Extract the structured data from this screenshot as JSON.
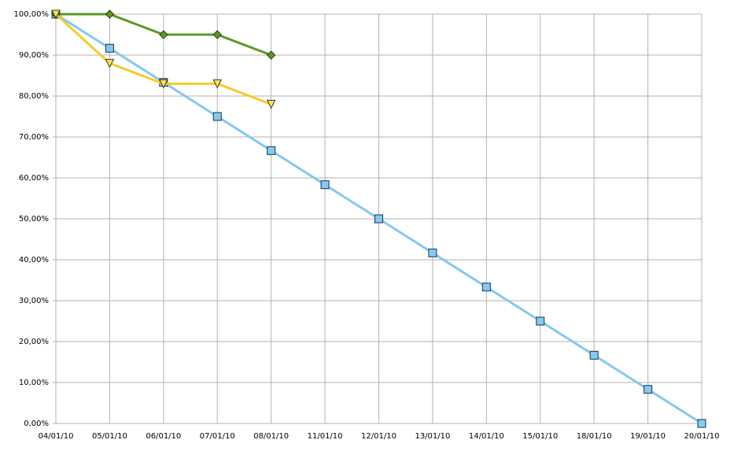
{
  "chart_data": {
    "type": "line",
    "categories": [
      "04/01/10",
      "05/01/10",
      "06/01/10",
      "07/01/10",
      "08/01/10",
      "11/01/10",
      "12/01/10",
      "13/01/10",
      "14/01/10",
      "15/01/10",
      "18/01/10",
      "19/01/10",
      "20/01/10"
    ],
    "series": [
      {
        "color": "#87c8ee",
        "marker": "square",
        "values": [
          100,
          91.67,
          83.33,
          75,
          66.67,
          58.33,
          50,
          41.67,
          33.33,
          25,
          16.67,
          8.33,
          0
        ]
      },
      {
        "color": "#5a9a28",
        "marker": "diamond",
        "values": [
          100,
          100,
          95,
          95,
          90,
          null,
          null,
          null,
          null,
          null,
          null,
          null,
          null
        ]
      },
      {
        "color": "#f5cc2a",
        "marker": "triangle-down",
        "values": [
          100,
          88,
          83,
          83,
          78,
          null,
          null,
          null,
          null,
          null,
          null,
          null,
          null
        ]
      }
    ],
    "ylim": [
      0,
      100
    ],
    "yticks": [
      {
        "value": 0,
        "label": "0,00%"
      },
      {
        "value": 10,
        "label": "10,00%"
      },
      {
        "value": 20,
        "label": "20,00%"
      },
      {
        "value": 30,
        "label": "30,00%"
      },
      {
        "value": 40,
        "label": "40,00%"
      },
      {
        "value": 50,
        "label": "50,00%"
      },
      {
        "value": 60,
        "label": "60,00%"
      },
      {
        "value": 70,
        "label": "70,00%"
      },
      {
        "value": 80,
        "label": "80,00%"
      },
      {
        "value": 90,
        "label": "90,00%"
      },
      {
        "value": 100,
        "label": "100,00%"
      }
    ],
    "grid": true
  }
}
